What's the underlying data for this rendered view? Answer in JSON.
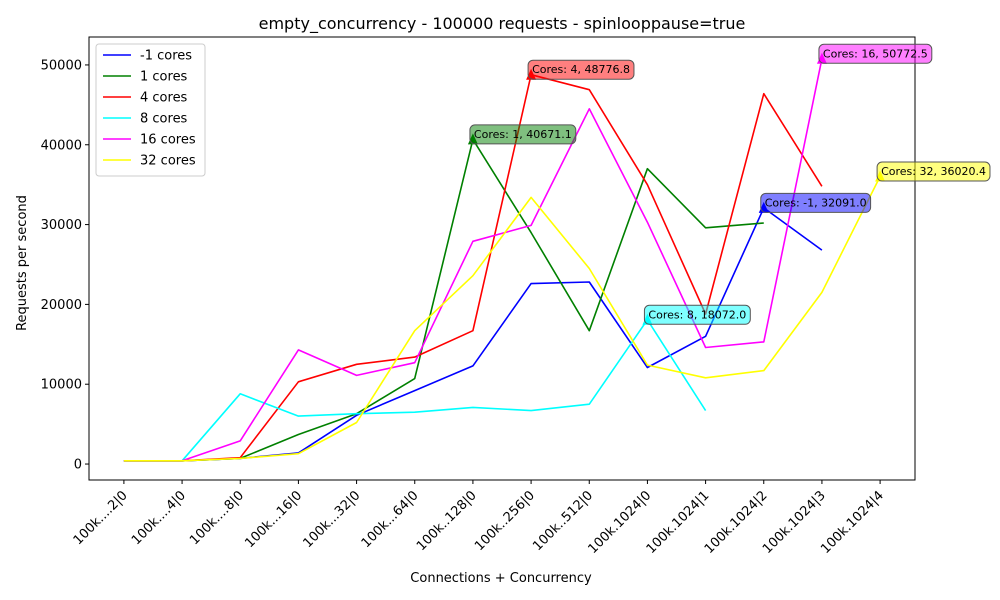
{
  "chart_data": {
    "type": "line",
    "title": "empty_concurrency - 100000 requests - spinlooppause=true",
    "xlabel": "Connections + Concurrency",
    "ylabel": "Requests per second",
    "categories": [
      "100k....2|0",
      "100k....4|0",
      "100k....8|0",
      "100k...16|0",
      "100k...32|0",
      "100k...64|0",
      "100k..128|0",
      "100k..256|0",
      "100k..512|0",
      "100k.1024|0",
      "100k.1024|1",
      "100k.1024|2",
      "100k.1024|3",
      "100k.1024|4"
    ],
    "ylim": [
      -2000,
      53500
    ],
    "yticks": [
      0,
      10000,
      20000,
      30000,
      40000,
      50000
    ],
    "ytick_labels": [
      "0",
      "10000",
      "20000",
      "30000",
      "40000",
      "50000"
    ],
    "grid": false,
    "legend_position": "top-left",
    "series": [
      {
        "name": "-1 cores",
        "color": "#0000ff",
        "values": [
          400,
          400,
          700,
          1400,
          6100,
          9200,
          12300,
          22600,
          22800,
          12100,
          16000,
          32091.0,
          26800,
          null
        ]
      },
      {
        "name": "1 cores",
        "color": "#008000",
        "values": [
          400,
          400,
          700,
          3700,
          6300,
          10700,
          40671.1,
          29000,
          16700,
          37000,
          29600,
          30200,
          null,
          null
        ]
      },
      {
        "name": "4 cores",
        "color": "#ff0000",
        "values": [
          400,
          400,
          800,
          10300,
          12500,
          13400,
          16700,
          48776.8,
          46900,
          35000,
          18800,
          46400,
          34800,
          null
        ]
      },
      {
        "name": "8 cores",
        "color": "#00ffff",
        "values": [
          400,
          400,
          8800,
          6000,
          6300,
          6500,
          7100,
          6700,
          7500,
          18072.0,
          6700,
          null,
          null,
          null
        ]
      },
      {
        "name": "16 cores",
        "color": "#ff00ff",
        "values": [
          400,
          400,
          2900,
          14300,
          11100,
          12700,
          27900,
          29900,
          44500,
          30300,
          14600,
          15300,
          50772.5,
          null
        ]
      },
      {
        "name": "32 cores",
        "color": "#ffff00",
        "values": [
          400,
          400,
          700,
          1300,
          5200,
          16700,
          23600,
          33400,
          24500,
          12400,
          10800,
          11700,
          21500,
          36020.4
        ]
      }
    ],
    "annotations": [
      {
        "text": "Cores: -1, 32091.0",
        "series": "-1 cores",
        "x_index": 11,
        "y": 32091.0,
        "color": "#0000ff"
      },
      {
        "text": "Cores: 1, 40671.1",
        "series": "1 cores",
        "x_index": 6,
        "y": 40671.1,
        "color": "#008000"
      },
      {
        "text": "Cores: 4, 48776.8",
        "series": "4 cores",
        "x_index": 7,
        "y": 48776.8,
        "color": "#ff0000"
      },
      {
        "text": "Cores: 8, 18072.0",
        "series": "8 cores",
        "x_index": 9,
        "y": 18072.0,
        "color": "#00ffff"
      },
      {
        "text": "Cores: 16, 50772.5",
        "series": "16 cores",
        "x_index": 12,
        "y": 50772.5,
        "color": "#ff00ff"
      },
      {
        "text": "Cores: 32, 36020.4",
        "series": "32 cores",
        "x_index": 13,
        "y": 36020.4,
        "color": "#ffff00"
      }
    ]
  }
}
